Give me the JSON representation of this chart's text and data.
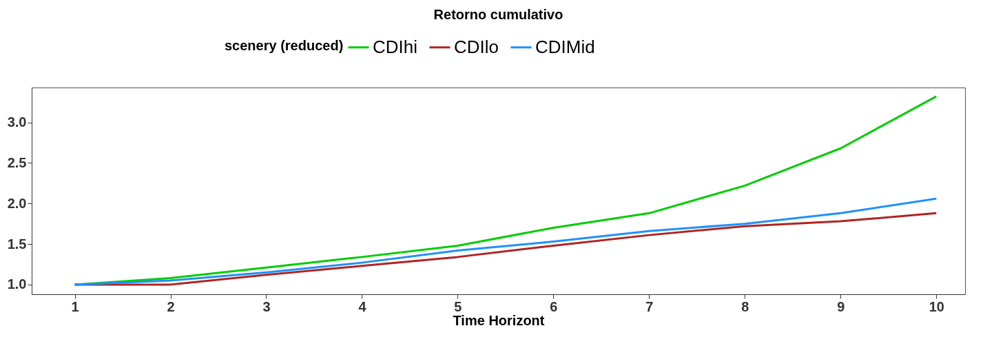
{
  "chart_data": {
    "type": "line",
    "title": "Retorno cumulativo",
    "xlabel": "Time Horizont",
    "legend_title": "scenery (reduced)",
    "legend": "top",
    "grid": false,
    "marker": "none",
    "line_style": "solid",
    "x": [
      1,
      2,
      3,
      4,
      5,
      6,
      7,
      8,
      9,
      10
    ],
    "xlim": [
      0.55,
      10.3
    ],
    "xticks": [
      1,
      2,
      3,
      4,
      5,
      6,
      7,
      8,
      9,
      10
    ],
    "ylim": [
      0.88,
      3.43
    ],
    "yticks": [
      {
        "value": 1,
        "label": "1.0"
      },
      1.5,
      {
        "value": 2,
        "label": "2.0"
      },
      2.5,
      {
        "value": 3,
        "label": "3.0"
      }
    ],
    "series": [
      {
        "name": "CDIhi",
        "color": "#00cd00",
        "values": [
          1.0,
          1.08,
          1.21,
          1.34,
          1.48,
          1.7,
          1.88,
          2.22,
          2.68,
          3.32
        ]
      },
      {
        "name": "CDIlo",
        "color": "#b22222",
        "values": [
          1.0,
          1.0,
          1.12,
          1.23,
          1.34,
          1.48,
          1.61,
          1.72,
          1.78,
          1.88
        ]
      },
      {
        "name": "CDIMid",
        "color": "#1e90ff",
        "values": [
          1.0,
          1.05,
          1.15,
          1.27,
          1.42,
          1.53,
          1.66,
          1.75,
          1.88,
          2.06
        ]
      }
    ]
  }
}
